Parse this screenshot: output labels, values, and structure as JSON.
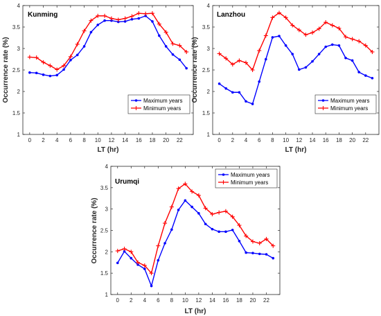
{
  "chart_data": [
    {
      "type": "line",
      "title": "Kunming",
      "xlabel": "LT (hr)",
      "ylabel": "Occurrence rate (%)",
      "xlim": [
        -1,
        24
      ],
      "ylim": [
        1,
        4
      ],
      "xticks": [
        0,
        2,
        4,
        6,
        8,
        10,
        12,
        14,
        16,
        18,
        20,
        22
      ],
      "yticks": [
        1,
        1.5,
        2,
        2.5,
        3,
        3.5,
        4
      ],
      "legend_position": "bottom-right",
      "x": [
        0,
        1,
        2,
        3,
        4,
        5,
        6,
        7,
        8,
        9,
        10,
        11,
        12,
        13,
        14,
        15,
        16,
        17,
        18,
        19,
        20,
        21,
        22,
        23
      ],
      "series": [
        {
          "name": "Maximum years",
          "color": "#0000ff",
          "marker": "dot",
          "values": [
            2.44,
            2.43,
            2.39,
            2.36,
            2.38,
            2.51,
            2.73,
            2.85,
            3.05,
            3.38,
            3.55,
            3.65,
            3.65,
            3.62,
            3.63,
            3.68,
            3.7,
            3.76,
            3.63,
            3.3,
            3.05,
            2.86,
            2.74,
            2.54
          ]
        },
        {
          "name": "Minimum years",
          "color": "#ff0000",
          "marker": "plus",
          "values": [
            2.8,
            2.79,
            2.68,
            2.6,
            2.51,
            2.6,
            2.81,
            3.1,
            3.41,
            3.65,
            3.76,
            3.76,
            3.7,
            3.67,
            3.7,
            3.75,
            3.82,
            3.81,
            3.82,
            3.57,
            3.38,
            3.11,
            3.07,
            2.92
          ]
        }
      ]
    },
    {
      "type": "line",
      "title": "Lanzhou",
      "xlabel": "LT (hr)",
      "ylabel": "Occurrence rate (%)",
      "xlim": [
        -1,
        24
      ],
      "ylim": [
        1,
        4
      ],
      "xticks": [
        0,
        2,
        4,
        6,
        8,
        10,
        12,
        14,
        16,
        18,
        20,
        22
      ],
      "yticks": [
        1,
        1.5,
        2,
        2.5,
        3,
        3.5,
        4
      ],
      "legend_position": "bottom-right",
      "x": [
        0,
        1,
        2,
        3,
        4,
        5,
        6,
        7,
        8,
        9,
        10,
        11,
        12,
        13,
        14,
        15,
        16,
        17,
        18,
        19,
        20,
        21,
        22,
        23
      ],
      "series": [
        {
          "name": "Maximum years",
          "color": "#0000ff",
          "marker": "dot",
          "values": [
            2.18,
            2.07,
            1.98,
            1.98,
            1.77,
            1.71,
            2.23,
            2.75,
            3.26,
            3.29,
            3.07,
            2.87,
            2.51,
            2.56,
            2.7,
            2.87,
            3.04,
            3.09,
            3.07,
            2.78,
            2.72,
            2.45,
            2.37,
            2.31
          ]
        },
        {
          "name": "Minimum years",
          "color": "#ff0000",
          "marker": "plus",
          "values": [
            2.88,
            2.77,
            2.63,
            2.72,
            2.67,
            2.5,
            2.95,
            3.3,
            3.72,
            3.83,
            3.72,
            3.54,
            3.43,
            3.32,
            3.37,
            3.46,
            3.61,
            3.54,
            3.47,
            3.27,
            3.22,
            3.17,
            3.07,
            2.92
          ]
        }
      ]
    },
    {
      "type": "line",
      "title": "Urumqi",
      "xlabel": "LT (hr)",
      "ylabel": "Occurrence rate (%)",
      "xlim": [
        -1,
        24
      ],
      "ylim": [
        1,
        4
      ],
      "xticks": [
        0,
        2,
        4,
        6,
        8,
        10,
        12,
        14,
        16,
        18,
        20,
        22
      ],
      "yticks": [
        1,
        1.5,
        2,
        2.5,
        3,
        3.5,
        4
      ],
      "legend_position": "top-right",
      "x": [
        0,
        1,
        2,
        3,
        4,
        5,
        6,
        7,
        8,
        9,
        10,
        11,
        12,
        13,
        14,
        15,
        16,
        17,
        18,
        19,
        20,
        21,
        22,
        23
      ],
      "series": [
        {
          "name": "Maximum years",
          "color": "#0000ff",
          "marker": "dot",
          "values": [
            1.74,
            2.01,
            1.85,
            1.7,
            1.6,
            1.2,
            1.8,
            2.2,
            2.52,
            2.98,
            3.2,
            3.05,
            2.9,
            2.65,
            2.53,
            2.47,
            2.47,
            2.51,
            2.25,
            1.98,
            1.97,
            1.95,
            1.94,
            1.85
          ]
        },
        {
          "name": "Minimum years",
          "color": "#ff0000",
          "marker": "plus",
          "values": [
            2.02,
            2.07,
            2.0,
            1.75,
            1.68,
            1.5,
            2.14,
            2.67,
            3.05,
            3.48,
            3.59,
            3.41,
            3.32,
            3.02,
            2.88,
            2.92,
            2.95,
            2.82,
            2.62,
            2.37,
            2.24,
            2.2,
            2.3,
            2.14
          ]
        }
      ]
    }
  ]
}
